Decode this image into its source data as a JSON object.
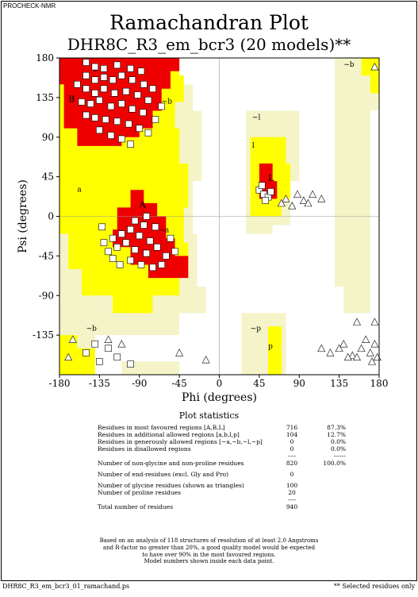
{
  "header_tag": "PROCHECK-NMR",
  "title": "Ramachandran Plot",
  "subtitle": "DHR8C_R3_em_bcr3 (20 models)**",
  "chart_data": {
    "type": "scatter",
    "xlabel": "Phi (degrees)",
    "ylabel": "Psi (degrees)",
    "xlim": [
      -180,
      180
    ],
    "ylim": [
      -180,
      180
    ],
    "xticks": [
      "-180",
      "-135",
      "-90",
      "-45",
      "0",
      "45",
      "90",
      "135",
      "180"
    ],
    "yticks": [
      "180",
      "135",
      "90",
      "45",
      "0",
      "-45",
      "-90",
      "-135"
    ],
    "region_labels": [
      {
        "text": "A",
        "phi": -90,
        "psi": 10
      },
      {
        "text": "a",
        "phi": -160,
        "psi": 28
      },
      {
        "text": "B",
        "phi": -170,
        "psi": 130
      },
      {
        "text": "b",
        "phi": -142,
        "psi": 165
      },
      {
        "text": "~b",
        "phi": -150,
        "psi": -130
      },
      {
        "text": "~b",
        "phi": -65,
        "psi": 128
      },
      {
        "text": "~b",
        "phi": 140,
        "psi": 170
      },
      {
        "text": "~a",
        "phi": -68,
        "psi": -18
      },
      {
        "text": "~l",
        "phi": 37,
        "psi": 110
      },
      {
        "text": "l",
        "phi": 37,
        "psi": 78
      },
      {
        "text": "L",
        "phi": 55,
        "psi": 40
      },
      {
        "text": "~p",
        "phi": 35,
        "psi": -130
      },
      {
        "text": "p",
        "phi": 55,
        "psi": -150
      }
    ],
    "regions": {
      "colors": {
        "core": "#ee0000",
        "allowed": "#ffff00",
        "generous": "#f0f08c",
        "pale": "#f4f4c8",
        "disallowed": "#ffffff"
      }
    },
    "residue_points": [
      [
        -150,
        175
      ],
      [
        -140,
        170
      ],
      [
        -130,
        168
      ],
      [
        -115,
        172
      ],
      [
        -100,
        168
      ],
      [
        -88,
        165
      ],
      [
        -150,
        160
      ],
      [
        -140,
        155
      ],
      [
        -130,
        158
      ],
      [
        -120,
        155
      ],
      [
        -110,
        160
      ],
      [
        -98,
        155
      ],
      [
        -85,
        150
      ],
      [
        -75,
        145
      ],
      [
        -160,
        150
      ],
      [
        -150,
        145
      ],
      [
        -140,
        140
      ],
      [
        -130,
        145
      ],
      [
        -118,
        140
      ],
      [
        -105,
        142
      ],
      [
        -92,
        138
      ],
      [
        -80,
        132
      ],
      [
        -155,
        130
      ],
      [
        -145,
        128
      ],
      [
        -135,
        132
      ],
      [
        -122,
        125
      ],
      [
        -110,
        128
      ],
      [
        -98,
        122
      ],
      [
        -86,
        118
      ],
      [
        -150,
        115
      ],
      [
        -140,
        112
      ],
      [
        -128,
        110
      ],
      [
        -115,
        108
      ],
      [
        -102,
        105
      ],
      [
        -90,
        100
      ],
      [
        -80,
        95
      ],
      [
        -135,
        98
      ],
      [
        -122,
        92
      ],
      [
        -110,
        88
      ],
      [
        -100,
        82
      ],
      [
        -72,
        110
      ],
      [
        -65,
        125
      ],
      [
        -95,
        -5
      ],
      [
        -85,
        -10
      ],
      [
        -100,
        -15
      ],
      [
        -110,
        -20
      ],
      [
        -120,
        -25
      ],
      [
        -90,
        -22
      ],
      [
        -78,
        -28
      ],
      [
        -105,
        -30
      ],
      [
        -115,
        -35
      ],
      [
        -125,
        -40
      ],
      [
        -95,
        -38
      ],
      [
        -82,
        -42
      ],
      [
        -70,
        -35
      ],
      [
        -60,
        -45
      ],
      [
        -100,
        -50
      ],
      [
        -112,
        -55
      ],
      [
        -88,
        -55
      ],
      [
        -75,
        -58
      ],
      [
        -65,
        -55
      ],
      [
        -120,
        -48
      ],
      [
        -130,
        -30
      ],
      [
        -132,
        -12
      ],
      [
        -82,
        0
      ],
      [
        -72,
        -12
      ],
      [
        -55,
        -25
      ],
      [
        -50,
        -40
      ],
      [
        -140,
        -145
      ],
      [
        -125,
        -150
      ],
      [
        -115,
        -160
      ],
      [
        -135,
        -165
      ],
      [
        -100,
        -168
      ],
      [
        -150,
        -155
      ],
      [
        45,
        30
      ],
      [
        50,
        25
      ],
      [
        55,
        22
      ],
      [
        48,
        35
      ],
      [
        58,
        28
      ],
      [
        52,
        18
      ]
    ],
    "glycine_points": [
      [
        115,
        -150
      ],
      [
        125,
        -155
      ],
      [
        140,
        -145
      ],
      [
        150,
        -158
      ],
      [
        160,
        -150
      ],
      [
        170,
        -155
      ],
      [
        175,
        -145
      ],
      [
        165,
        -140
      ],
      [
        155,
        -160
      ],
      [
        145,
        -160
      ],
      [
        135,
        -150
      ],
      [
        178,
        -160
      ],
      [
        172,
        -165
      ],
      [
        75,
        20
      ],
      [
        88,
        25
      ],
      [
        95,
        18
      ],
      [
        105,
        25
      ],
      [
        115,
        20
      ],
      [
        100,
        15
      ],
      [
        82,
        12
      ],
      [
        70,
        15
      ],
      [
        175,
        170
      ],
      [
        -165,
        -140
      ],
      [
        -125,
        -140
      ],
      [
        -170,
        -160
      ],
      [
        -110,
        -145
      ],
      [
        -45,
        -155
      ],
      [
        -15,
        -163
      ],
      [
        175,
        -120
      ],
      [
        155,
        -120
      ]
    ]
  },
  "stats": {
    "heading": "Plot statistics",
    "rows": [
      {
        "label": "Residues in most favoured regions  [A,B,L]",
        "count": "716",
        "pct": "87.3%"
      },
      {
        "label": "Residues in additional allowed regions  [a,b,l,p]",
        "count": "104",
        "pct": "12.7%"
      },
      {
        "label": "Residues in generously allowed regions  [~a,~b,~l,~p]",
        "count": "0",
        "pct": "0.0%"
      },
      {
        "label": "Residues in disallowed regions",
        "count": "0",
        "pct": "0.0%"
      }
    ],
    "sep1_count": "----",
    "sep1_pct": "------",
    "nongly": {
      "label": "Number of non-glycine and non-proline residues",
      "count": "820",
      "pct": "100.0%"
    },
    "endres": {
      "label": "Number of end-residues (excl. Gly and Pro)",
      "count": "0"
    },
    "gly": {
      "label": "Number of glycine residues (shown as triangles)",
      "count": "100"
    },
    "pro": {
      "label": "Number of proline residues",
      "count": "20"
    },
    "sep2_count": "----",
    "total": {
      "label": "Total number of residues",
      "count": "940"
    }
  },
  "note": [
    "Based on an analysis of 118 structures of resolution of at least 2.0 Angstroms",
    "and R-factor no greater than 20%, a good quality model would be expected",
    "to have over 90% in the most favoured regions.",
    "Model numbers shown inside each data point."
  ],
  "footer_left": "DHR8C_R3_em_bcr3_01_ramachand.ps",
  "footer_right": "** Selected residues only"
}
